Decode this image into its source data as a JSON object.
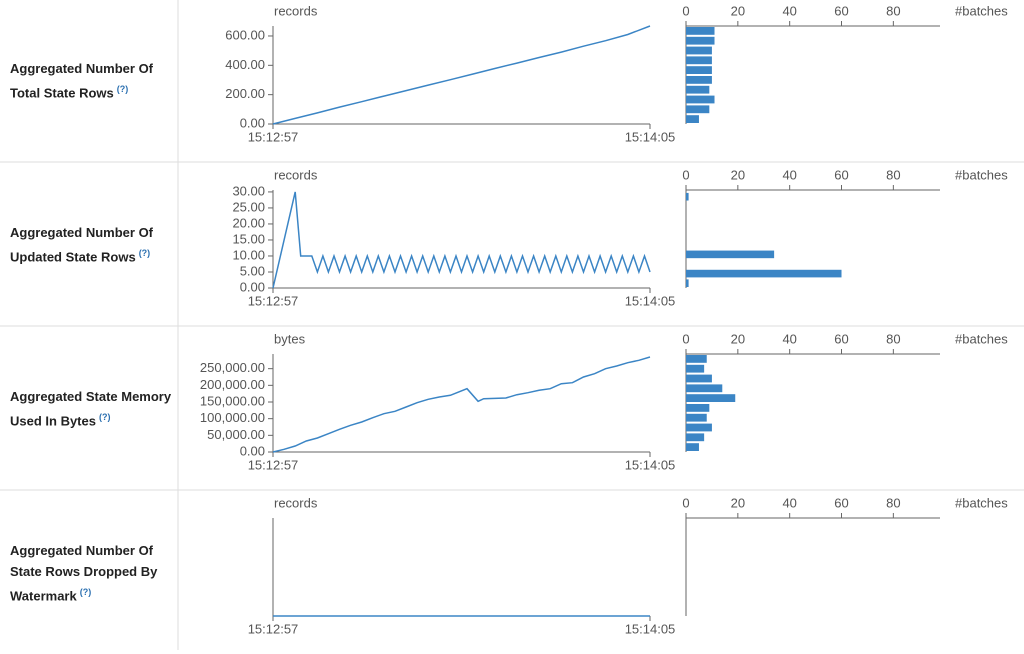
{
  "rows": [
    {
      "label": "Aggregated Number Of Total State Rows",
      "help": "(?)",
      "timeline": {
        "type": "line",
        "unit_label": "records",
        "color": "#3b85c5",
        "x": [
          0,
          4,
          8,
          12,
          16,
          20,
          24,
          28,
          32,
          36,
          40,
          44,
          48,
          52,
          56,
          60,
          64,
          68
        ],
        "values": [
          0,
          38,
          76,
          115,
          152,
          190,
          228,
          265,
          302,
          340,
          378,
          415,
          453,
          490,
          530,
          568,
          610,
          668
        ],
        "xlim": [
          0,
          68
        ],
        "xticks": [
          {
            "value": 0,
            "label": "15:12:57"
          },
          {
            "value": 68,
            "label": "15:14:05"
          }
        ],
        "ylim": [
          0,
          668
        ],
        "yticks": [
          {
            "value": 0,
            "label": "0.00"
          },
          {
            "value": 200,
            "label": "200.00"
          },
          {
            "value": 400,
            "label": "400.00"
          },
          {
            "value": 600,
            "label": "600.00"
          }
        ]
      },
      "histogram": {
        "type": "histogram",
        "unit_label": "#batches",
        "color": "#3b85c5",
        "bins": [
          0,
          66.8,
          133.6,
          200.4,
          267.2,
          334,
          400.8,
          467.6,
          534.4,
          601.2,
          668
        ],
        "values": [
          5,
          9,
          11,
          9,
          10,
          10,
          10,
          10,
          11,
          11
        ],
        "xlim": [
          0,
          98
        ],
        "xticks": [
          0,
          20,
          40,
          60,
          80
        ]
      }
    },
    {
      "label": "Aggregated Number Of Updated State Rows",
      "help": "(?)",
      "timeline": {
        "type": "line",
        "unit_label": "records",
        "color": "#3b85c5",
        "x": [
          0,
          4,
          5,
          7,
          8,
          9,
          10,
          11,
          12,
          13,
          14,
          15,
          16,
          17,
          18,
          19,
          20,
          21,
          22,
          23,
          24,
          25,
          26,
          27,
          28,
          29,
          30,
          31,
          32,
          33,
          34,
          35,
          36,
          37,
          38,
          39,
          40,
          41,
          42,
          43,
          44,
          45,
          46,
          47,
          48,
          49,
          50,
          51,
          52,
          53,
          54,
          55,
          56,
          57,
          58,
          59,
          60,
          61,
          62,
          63,
          64,
          65,
          66,
          67,
          68
        ],
        "values": [
          0,
          30,
          10,
          10,
          5,
          10,
          5,
          10,
          5,
          10,
          5,
          10,
          5,
          10,
          5,
          10,
          5,
          10,
          5,
          10,
          5,
          10,
          5,
          10,
          5,
          10,
          5,
          10,
          5,
          10,
          5,
          10,
          5,
          10,
          5,
          10,
          5,
          10,
          5,
          10,
          5,
          10,
          5,
          10,
          5,
          10,
          5,
          10,
          5,
          10,
          5,
          10,
          5,
          10,
          5,
          10,
          5,
          10,
          5,
          10,
          5,
          10,
          5,
          10,
          5
        ],
        "xlim": [
          0,
          68
        ],
        "xticks": [
          {
            "value": 0,
            "label": "15:12:57"
          },
          {
            "value": 68,
            "label": "15:14:05"
          }
        ],
        "ylim": [
          0,
          30.6
        ],
        "yticks": [
          {
            "value": 0,
            "label": "0.00"
          },
          {
            "value": 5,
            "label": "5.00"
          },
          {
            "value": 10,
            "label": "10.00"
          },
          {
            "value": 15,
            "label": "15.00"
          },
          {
            "value": 20,
            "label": "20.00"
          },
          {
            "value": 25,
            "label": "25.00"
          },
          {
            "value": 30,
            "label": "30.00"
          }
        ]
      },
      "histogram": {
        "type": "histogram",
        "unit_label": "#batches",
        "color": "#3b85c5",
        "bins": [
          0,
          3,
          6,
          9,
          12,
          15,
          18,
          21,
          24,
          27,
          30
        ],
        "values": [
          1,
          60,
          0,
          34,
          0,
          0,
          0,
          0,
          0,
          1
        ],
        "xlim": [
          0,
          98
        ],
        "xticks": [
          0,
          20,
          40,
          60,
          80
        ]
      }
    },
    {
      "label": "Aggregated State Memory Used In Bytes",
      "help": "(?)",
      "timeline": {
        "type": "line",
        "unit_label": "bytes",
        "color": "#3b85c5",
        "x": [
          0,
          2,
          4,
          6,
          8,
          10,
          12,
          14,
          16,
          18,
          20,
          22,
          24,
          26,
          28,
          30,
          32,
          35,
          37,
          38,
          42,
          44,
          46,
          48,
          50,
          52,
          54,
          56,
          58,
          60,
          62,
          64,
          66,
          68
        ],
        "values": [
          0,
          8000,
          18000,
          33000,
          42000,
          55000,
          68000,
          80000,
          90000,
          103000,
          115000,
          122000,
          135000,
          148000,
          158000,
          165000,
          170000,
          190000,
          152000,
          160000,
          162000,
          172000,
          178000,
          185000,
          190000,
          205000,
          208000,
          225000,
          235000,
          250000,
          258000,
          268000,
          275000,
          285000
        ],
        "xlim": [
          0,
          68
        ],
        "xticks": [
          {
            "value": 0,
            "label": "15:12:57"
          },
          {
            "value": 68,
            "label": "15:14:05"
          }
        ],
        "ylim": [
          0,
          294000
        ],
        "yticks": [
          {
            "value": 0,
            "label": "0.00"
          },
          {
            "value": 50000,
            "label": "50,000.00"
          },
          {
            "value": 100000,
            "label": "100,000.00"
          },
          {
            "value": 150000,
            "label": "150,000.00"
          },
          {
            "value": 200000,
            "label": "200,000.00"
          },
          {
            "value": 250000,
            "label": "250,000.00"
          }
        ]
      },
      "histogram": {
        "type": "histogram",
        "unit_label": "#batches",
        "color": "#3b85c5",
        "bins": [
          0,
          29400,
          58800,
          88200,
          117600,
          147000,
          176400,
          205800,
          235200,
          264600,
          294000
        ],
        "values": [
          5,
          7,
          10,
          8,
          9,
          19,
          14,
          10,
          7,
          8
        ],
        "xlim": [
          0,
          98
        ],
        "xticks": [
          0,
          20,
          40,
          60,
          80
        ]
      }
    },
    {
      "label": "Aggregated Number Of State Rows Dropped By Watermark",
      "help": "(?)",
      "timeline": {
        "type": "line",
        "unit_label": "records",
        "color": "#3b85c5",
        "x": [
          0,
          68
        ],
        "values": [
          0,
          0
        ],
        "xlim": [
          0,
          68
        ],
        "xticks": [
          {
            "value": 0,
            "label": "15:12:57"
          },
          {
            "value": 68,
            "label": "15:14:05"
          }
        ],
        "ylim": [
          0,
          1
        ],
        "yticks": []
      },
      "histogram": {
        "type": "histogram",
        "unit_label": "#batches",
        "color": "#3b85c5",
        "bins": [
          0,
          1
        ],
        "values": [
          0
        ],
        "xlim": [
          0,
          98
        ],
        "xticks": [
          0,
          20,
          40,
          60,
          80
        ]
      }
    }
  ]
}
